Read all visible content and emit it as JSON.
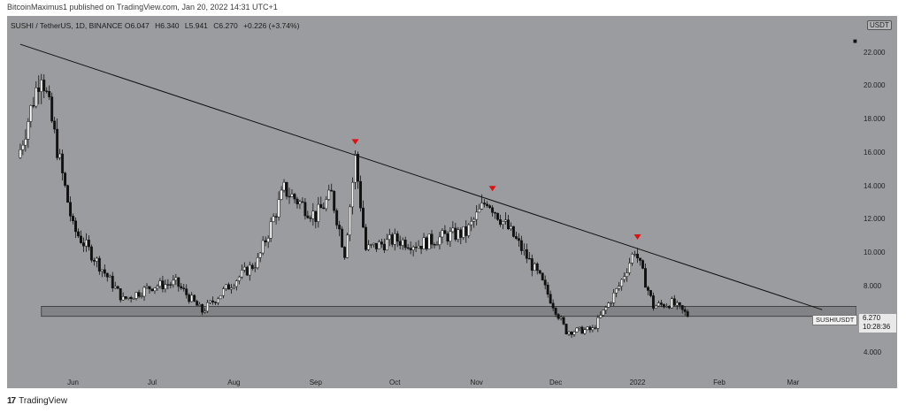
{
  "header": {
    "text": "BitcoinMaximus1 published on TradingView.com, Jan 20, 2022 14:31 UTC+1"
  },
  "legend": {
    "symbol": "SUSHI / TetherUS, 1D, BINANCE",
    "o_key": "O",
    "o_val": "6.047",
    "h_key": "H",
    "h_val": "6.340",
    "l_key": "L",
    "l_val": "5.941",
    "c_key": "C",
    "c_val": "6.270",
    "change": "+0.226 (+3.74%)"
  },
  "axis_unit": "USDT",
  "price_tag": {
    "pair": "SUSHIUSDT",
    "price": "6.270",
    "countdown": "10:28:36"
  },
  "footer": {
    "brand": "TradingView"
  },
  "colors": {
    "background": "#9b9ca0",
    "up_candle": "#ffffff",
    "down_candle": "#111111",
    "trendline": "#111111",
    "marker": "#e01010",
    "support_zone": "#7c7d80"
  },
  "chart_data": {
    "type": "candlestick",
    "title": "SUSHI / TetherUS, 1D, BINANCE",
    "ylabel": "USDT",
    "y_ticks": [
      "4.000",
      "6.000",
      "8.000",
      "10.000",
      "12.000",
      "14.000",
      "16.000",
      "18.000",
      "20.000",
      "22.000"
    ],
    "x_ticks": [
      "Jun",
      "Jul",
      "Aug",
      "Sep",
      "Oct",
      "Nov",
      "Dec",
      "2022",
      "Feb",
      "Mar"
    ],
    "ylim": [
      2.9,
      24.2
    ],
    "x": [
      "2021-05-12",
      "2021-05-20",
      "2021-06-01",
      "2021-06-10",
      "2021-06-20",
      "2021-07-01",
      "2021-07-10",
      "2021-07-20",
      "2021-08-01",
      "2021-08-10",
      "2021-08-20",
      "2021-09-01",
      "2021-09-07",
      "2021-09-12",
      "2021-09-16",
      "2021-09-20",
      "2021-10-01",
      "2021-10-10",
      "2021-10-20",
      "2021-10-28",
      "2021-11-05",
      "2021-11-15",
      "2021-11-25",
      "2021-12-05",
      "2021-12-15",
      "2021-12-25",
      "2021-12-31",
      "2022-01-07",
      "2022-01-14",
      "2022-01-20"
    ],
    "close": [
      16.2,
      21.0,
      11.5,
      9.5,
      7.2,
      8.0,
      8.2,
      6.5,
      8.3,
      9.5,
      13.8,
      12.2,
      13.5,
      10.0,
      15.7,
      10.2,
      10.8,
      10.5,
      11.0,
      11.2,
      13.2,
      11.0,
      8.5,
      5.3,
      5.4,
      8.0,
      10.2,
      6.8,
      7.0,
      6.27
    ],
    "trendline": {
      "from": {
        "x": "2021-05-12",
        "y": 22.5
      },
      "to": {
        "x": "2022-03-12",
        "y": 6.6
      }
    },
    "support_zone": {
      "low": 6.2,
      "high": 6.8
    },
    "markers": [
      {
        "x": "2021-09-16",
        "y": 16.6
      },
      {
        "x": "2021-11-07",
        "y": 13.8
      },
      {
        "x": "2022-01-01",
        "y": 10.9
      }
    ],
    "grid": false,
    "legend": "top-left"
  }
}
